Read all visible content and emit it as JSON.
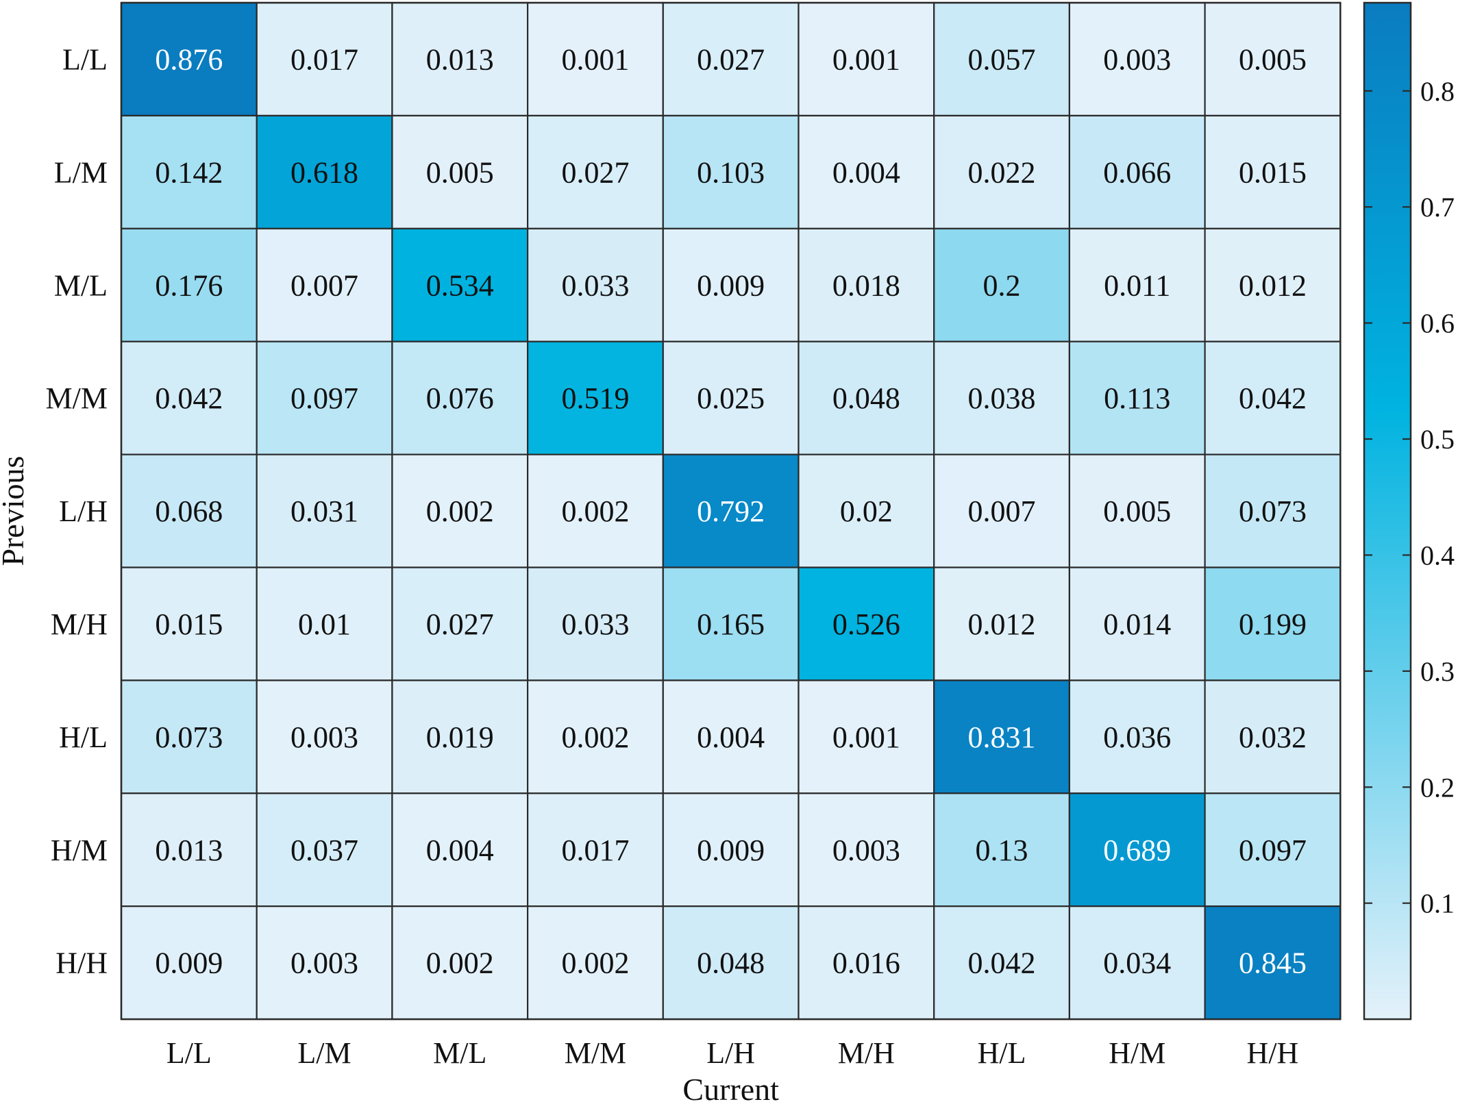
{
  "chart_data": {
    "type": "heatmap",
    "title": "",
    "xlabel": "Current",
    "ylabel": "Previous",
    "x_categories": [
      "L/L",
      "L/M",
      "M/L",
      "M/M",
      "L/H",
      "M/H",
      "H/L",
      "H/M",
      "H/H"
    ],
    "y_categories": [
      "L/L",
      "L/M",
      "M/L",
      "M/M",
      "L/H",
      "M/H",
      "H/L",
      "H/M",
      "H/H"
    ],
    "values": [
      [
        "0.876",
        "0.017",
        "0.013",
        "0.001",
        "0.027",
        "0.001",
        "0.057",
        "0.003",
        "0.005"
      ],
      [
        "0.142",
        "0.618",
        "0.005",
        "0.027",
        "0.103",
        "0.004",
        "0.022",
        "0.066",
        "0.015"
      ],
      [
        "0.176",
        "0.007",
        "0.534",
        "0.033",
        "0.009",
        "0.018",
        "0.2",
        "0.011",
        "0.012"
      ],
      [
        "0.042",
        "0.097",
        "0.076",
        "0.519",
        "0.025",
        "0.048",
        "0.038",
        "0.113",
        "0.042"
      ],
      [
        "0.068",
        "0.031",
        "0.002",
        "0.002",
        "0.792",
        "0.02",
        "0.007",
        "0.005",
        "0.073"
      ],
      [
        "0.015",
        "0.01",
        "0.027",
        "0.033",
        "0.165",
        "0.526",
        "0.012",
        "0.014",
        "0.199"
      ],
      [
        "0.073",
        "0.003",
        "0.019",
        "0.002",
        "0.004",
        "0.001",
        "0.831",
        "0.036",
        "0.032"
      ],
      [
        "0.013",
        "0.037",
        "0.004",
        "0.017",
        "0.009",
        "0.003",
        "0.13",
        "0.689",
        "0.097"
      ],
      [
        "0.009",
        "0.003",
        "0.002",
        "0.002",
        "0.048",
        "0.016",
        "0.042",
        "0.034",
        "0.845"
      ]
    ],
    "colorbar": {
      "range": [
        0,
        0.876
      ],
      "ticks": [
        0.1,
        0.2,
        0.3,
        0.4,
        0.5,
        0.6,
        0.7,
        0.8
      ],
      "tick_labels": [
        "0.1",
        "0.2",
        "0.3",
        "0.4",
        "0.5",
        "0.6",
        "0.7",
        "0.8"
      ],
      "color_low": "#e4f1fa",
      "color_mid": "#00b3e0",
      "color_high": "#0a7cc0"
    },
    "grid": true,
    "legend": "colorbar-right"
  }
}
